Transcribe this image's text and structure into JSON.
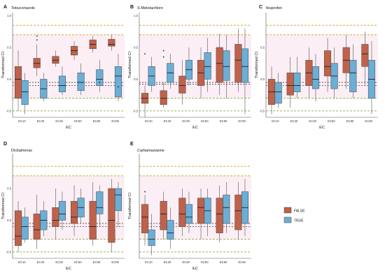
{
  "figure": {
    "legend": {
      "entries": [
        {
          "label": "FALSE",
          "color": "#c0614a"
        },
        {
          "label": "TRUE",
          "color": "#6baed6"
        }
      ]
    }
  },
  "chart_data": [
    {
      "type": "box",
      "letter": "A",
      "title": "Tebuconazole",
      "xlabel": "EC",
      "ylabel": "Transformed CI",
      "categories": [
        "EC10",
        "EC20",
        "EC30",
        "EC50",
        "EC80",
        "EC90"
      ],
      "yticks": [
        "1.0",
        "0.5",
        "0.0",
        "-0.5"
      ],
      "ylim": [
        -0.6,
        1.05
      ],
      "show_yticks": true,
      "ref_lines": [
        0.85,
        0.7,
        -0.3,
        -0.5
      ],
      "black_lines": [
        -0.05,
        -0.1
      ],
      "series": [
        {
          "name": "FALSE",
          "boxes": [
            {
              "min": -0.5,
              "q1": -0.3,
              "median": 0.0,
              "q3": 0.2,
              "max": 0.45
            },
            {
              "min": 0.05,
              "q1": 0.18,
              "median": 0.25,
              "q3": 0.33,
              "max": 0.55,
              "outliers": [
                0.62,
                0.68
              ]
            },
            {
              "min": 0.2,
              "q1": 0.25,
              "median": 0.3,
              "q3": 0.36,
              "max": 0.45
            },
            {
              "min": 0.3,
              "q1": 0.38,
              "median": 0.45,
              "q3": 0.52,
              "max": 0.6
            },
            {
              "min": 0.42,
              "q1": 0.48,
              "median": 0.55,
              "q3": 0.62,
              "max": 0.68
            },
            {
              "min": 0.45,
              "q1": 0.52,
              "median": 0.55,
              "q3": 0.63,
              "max": 0.7
            }
          ]
        },
        {
          "name": "TRUE",
          "boxes": [
            {
              "min": -0.55,
              "q1": -0.4,
              "median": -0.2,
              "q3": -0.02,
              "max": 0.1
            },
            {
              "min": -0.35,
              "q1": -0.3,
              "median": -0.15,
              "q3": 0.0,
              "max": 0.1
            },
            {
              "min": -0.25,
              "q1": -0.2,
              "median": -0.1,
              "q3": 0.05,
              "max": 0.2
            },
            {
              "min": -0.25,
              "q1": -0.18,
              "median": -0.05,
              "q3": 0.1,
              "max": 0.25
            },
            {
              "min": -0.2,
              "q1": -0.1,
              "median": 0.0,
              "q3": 0.15,
              "max": 0.3,
              "outliers": [
                -0.05
              ]
            },
            {
              "min": -0.35,
              "q1": -0.28,
              "median": 0.05,
              "q3": 0.2,
              "max": 0.4,
              "outliers": [
                -0.12
              ]
            }
          ]
        }
      ]
    },
    {
      "type": "box",
      "letter": "B",
      "title": "S-Metolachlore",
      "xlabel": "EC",
      "ylabel": "Transformed CI",
      "categories": [
        "EC10",
        "EC20",
        "EC30",
        "EC50",
        "EC80",
        "EC90"
      ],
      "yticks": [
        "1.0",
        "0.5",
        "0.0",
        "-0.5"
      ],
      "ylim": [
        -0.6,
        1.05
      ],
      "show_yticks": true,
      "ref_lines": [
        0.85,
        0.7,
        -0.3,
        -0.5
      ],
      "black_lines": [
        -0.05,
        -0.08
      ],
      "series": [
        {
          "name": "FALSE",
          "boxes": [
            {
              "min": -0.6,
              "q1": -0.38,
              "median": -0.3,
              "q3": -0.22,
              "max": -0.1,
              "outliers": [
                0.4
              ]
            },
            {
              "min": -0.45,
              "q1": -0.4,
              "median": -0.3,
              "q3": -0.18,
              "max": -0.05,
              "outliers": [
                0.35,
                0.45
              ]
            },
            {
              "min": -0.4,
              "q1": -0.22,
              "median": -0.1,
              "q3": 0.05,
              "max": 0.3
            },
            {
              "min": -0.3,
              "q1": -0.1,
              "median": 0.1,
              "q3": 0.3,
              "max": 0.5
            },
            {
              "min": -0.25,
              "q1": -0.05,
              "median": 0.25,
              "q3": 0.5,
              "max": 0.72
            },
            {
              "min": -0.2,
              "q1": -0.05,
              "median": 0.3,
              "q3": 0.55,
              "max": 0.8
            }
          ]
        },
        {
          "name": "TRUE",
          "boxes": [
            {
              "min": -0.2,
              "q1": -0.1,
              "median": 0.05,
              "q3": 0.2,
              "max": 0.35
            },
            {
              "min": -0.15,
              "q1": -0.05,
              "median": 0.1,
              "q3": 0.25,
              "max": 0.4
            },
            {
              "min": -0.1,
              "q1": 0.0,
              "median": 0.15,
              "q3": 0.3,
              "max": 0.5
            },
            {
              "min": -0.2,
              "q1": 0.0,
              "median": 0.2,
              "q3": 0.42,
              "max": 0.65
            },
            {
              "min": -0.3,
              "q1": -0.02,
              "median": 0.2,
              "q3": 0.45,
              "max": 0.7
            },
            {
              "min": -0.55,
              "q1": -0.05,
              "median": 0.2,
              "q3": 0.48,
              "max": 0.8
            }
          ]
        }
      ]
    },
    {
      "type": "box",
      "letter": "C",
      "title": "Ibuprofen",
      "xlabel": "EC",
      "ylabel": "Transformed CI",
      "categories": [
        "EC10",
        "EC20",
        "EC30",
        "EC50",
        "EC80",
        "EC90"
      ],
      "yticks": [
        "0.5",
        "0.0",
        "-0.5"
      ],
      "ylim": [
        -0.6,
        1.05
      ],
      "show_yticks": true,
      "ref_lines": [
        0.85,
        0.7,
        -0.3,
        -0.5
      ],
      "black_lines": [
        -0.05,
        -0.1
      ],
      "series": [
        {
          "name": "FALSE",
          "boxes": [
            {
              "min": -0.55,
              "q1": -0.4,
              "median": -0.2,
              "q3": 0.0,
              "max": 0.2
            },
            {
              "min": -0.45,
              "q1": -0.25,
              "median": -0.1,
              "q3": 0.1,
              "max": 0.35
            },
            {
              "min": -0.3,
              "q1": -0.1,
              "median": 0.1,
              "q3": 0.3,
              "max": 0.5
            },
            {
              "min": -0.2,
              "q1": 0.05,
              "median": 0.2,
              "q3": 0.45,
              "max": 0.65
            },
            {
              "min": -0.15,
              "q1": 0.1,
              "median": 0.3,
              "q3": 0.5,
              "max": 0.7
            },
            {
              "min": -0.1,
              "q1": 0.2,
              "median": 0.4,
              "q3": 0.55,
              "max": 0.75
            }
          ]
        },
        {
          "name": "TRUE",
          "boxes": [
            {
              "min": -0.45,
              "q1": -0.38,
              "median": -0.2,
              "q3": -0.05,
              "max": 0.1
            },
            {
              "min": -0.3,
              "q1": -0.2,
              "median": -0.1,
              "q3": 0.1,
              "max": 0.35
            },
            {
              "min": -0.35,
              "q1": -0.15,
              "median": 0.0,
              "q3": 0.2,
              "max": 0.4
            },
            {
              "min": -0.3,
              "q1": -0.15,
              "median": 0.05,
              "q3": 0.25,
              "max": 0.5
            },
            {
              "min": -0.3,
              "q1": -0.2,
              "median": 0.1,
              "q3": 0.3,
              "max": 0.55
            },
            {
              "min": -0.55,
              "q1": -0.3,
              "median": 0.0,
              "q3": 0.3,
              "max": 0.6
            }
          ]
        }
      ]
    },
    {
      "type": "box",
      "letter": "D",
      "title": "Diclophenac",
      "xlabel": "EC",
      "ylabel": "Transformed CI",
      "categories": [
        "EC10",
        "EC20",
        "EC30",
        "EC50",
        "EC80",
        "EC90"
      ],
      "yticks": [
        "0.5",
        "0.0",
        "-0.5"
      ],
      "ylim": [
        -0.6,
        1.05
      ],
      "show_yticks": true,
      "ref_lines": [
        0.85,
        0.7,
        -0.3,
        -0.5
      ],
      "black_lines": [
        -0.05,
        -0.1
      ],
      "series": [
        {
          "name": "FALSE",
          "boxes": [
            {
              "min": -0.5,
              "q1": -0.4,
              "median": -0.25,
              "q3": 0.15,
              "max": 0.3
            },
            {
              "min": -0.45,
              "q1": -0.3,
              "median": -0.15,
              "q3": 0.1,
              "max": 0.4
            },
            {
              "min": -0.3,
              "q1": -0.1,
              "median": 0.0,
              "q3": 0.2,
              "max": 0.5
            },
            {
              "min": -0.25,
              "q1": -0.05,
              "median": 0.05,
              "q3": 0.3,
              "max": 0.55
            },
            {
              "min": -0.4,
              "q1": -0.3,
              "median": -0.1,
              "q3": 0.3,
              "max": 0.6
            },
            {
              "min": -0.5,
              "q1": -0.35,
              "median": 0.0,
              "q3": 0.5,
              "max": 0.65
            }
          ]
        },
        {
          "name": "TRUE",
          "boxes": [
            {
              "min": -0.35,
              "q1": -0.3,
              "median": -0.1,
              "q3": 0.05,
              "max": 0.2
            },
            {
              "min": -0.25,
              "q1": -0.15,
              "median": 0.0,
              "q3": 0.15,
              "max": 0.3
            },
            {
              "min": -0.15,
              "q1": 0.0,
              "median": 0.1,
              "q3": 0.3,
              "max": 0.45
            },
            {
              "min": -0.05,
              "q1": 0.05,
              "median": 0.2,
              "q3": 0.35,
              "max": 0.5
            },
            {
              "min": -0.1,
              "q1": 0.1,
              "median": 0.2,
              "q3": 0.45,
              "max": 0.55
            },
            {
              "min": -0.1,
              "q1": 0.15,
              "median": 0.4,
              "q3": 0.5,
              "max": 0.6
            }
          ]
        }
      ]
    },
    {
      "type": "box",
      "letter": "E",
      "title": "Carbamazepine",
      "xlabel": "EC",
      "ylabel": "Transformed CI",
      "categories": [
        "EC10",
        "EC20",
        "EC30",
        "EC50",
        "EC80",
        "EC90"
      ],
      "yticks": [],
      "ylim": [
        -0.6,
        1.05
      ],
      "show_yticks": false,
      "ref_lines": [
        0.85,
        0.7,
        -0.3,
        -0.5
      ],
      "black_lines": [
        -0.05,
        -0.1
      ],
      "series": [
        {
          "name": "FALSE",
          "boxes": [
            {
              "min": -0.4,
              "q1": -0.2,
              "median": 0.05,
              "q3": 0.25,
              "max": 0.4,
              "outliers": [
                0.45
              ]
            },
            {
              "min": -0.3,
              "q1": -0.15,
              "median": 0.1,
              "q3": 0.3,
              "max": 0.45
            },
            {
              "min": -0.25,
              "q1": -0.1,
              "median": 0.1,
              "q3": 0.35,
              "max": 0.5
            },
            {
              "min": -0.3,
              "q1": -0.05,
              "median": 0.2,
              "q3": 0.35,
              "max": 0.5
            },
            {
              "min": -0.35,
              "q1": -0.2,
              "median": 0.1,
              "q3": 0.35,
              "max": 0.55
            },
            {
              "min": -0.3,
              "q1": -0.15,
              "median": 0.15,
              "q3": 0.4,
              "max": 0.6
            }
          ]
        },
        {
          "name": "TRUE",
          "boxes": [
            {
              "min": -0.55,
              "q1": -0.4,
              "median": -0.3,
              "q3": -0.15,
              "max": 0.1
            },
            {
              "min": -0.45,
              "q1": -0.3,
              "median": -0.2,
              "q3": 0.0,
              "max": 0.2
            },
            {
              "min": -0.2,
              "q1": -0.05,
              "median": 0.05,
              "q3": 0.25,
              "max": 0.45
            },
            {
              "min": -0.25,
              "q1": -0.05,
              "median": 0.15,
              "q3": 0.35,
              "max": 0.5
            },
            {
              "min": -0.2,
              "q1": -0.05,
              "median": 0.2,
              "q3": 0.4,
              "max": 0.6
            },
            {
              "min": -0.25,
              "q1": -0.05,
              "median": 0.2,
              "q3": 0.45,
              "max": 0.65
            }
          ]
        }
      ]
    }
  ]
}
